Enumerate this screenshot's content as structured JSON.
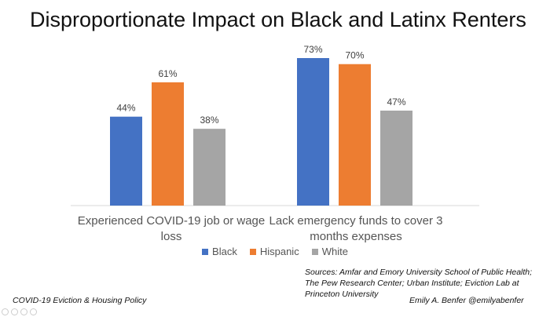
{
  "title": "Disproportionate Impact on Black and Latinx Renters",
  "chart_data": {
    "type": "bar",
    "categories": [
      "Experienced COVID-19 job or wage loss",
      "Lack emergency funds to cover 3 months expenses"
    ],
    "series": [
      {
        "name": "Black",
        "color": "#4472C4",
        "values": [
          44,
          73
        ]
      },
      {
        "name": "Hispanic",
        "color": "#ED7D31",
        "values": [
          61,
          70
        ]
      },
      {
        "name": "White",
        "color": "#A5A5A5",
        "values": [
          38,
          47
        ]
      }
    ],
    "value_suffix": "%",
    "ylim": [
      0,
      80
    ],
    "legend_position": "bottom",
    "grid": false
  },
  "sources": "Sources: Amfar and Emory University School of Public Health; The Pew Research Center; Urban Institute; Eviction Lab at Princeton University",
  "footer": {
    "left": "COVID-19 Eviction & Housing Policy",
    "right": "Emily A. Benfer @emilyabenfer"
  }
}
